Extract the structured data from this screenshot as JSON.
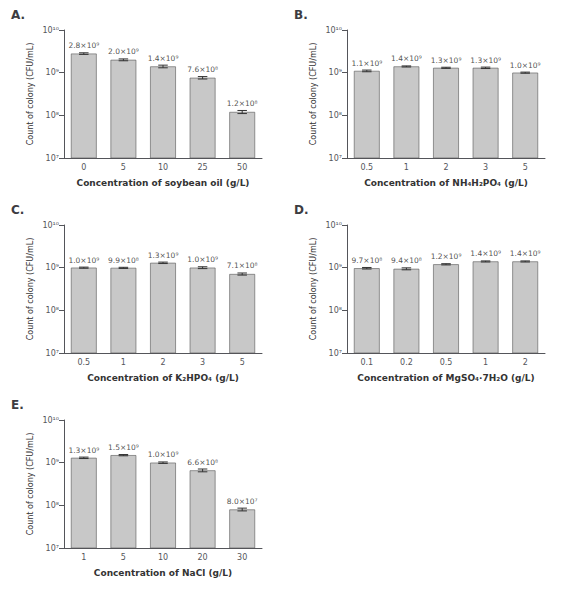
{
  "chart_data": [
    {
      "type": "bar",
      "title": "A.",
      "xlabel": "Concentration of soybean oil (g/L)",
      "ylabel": "Count of colony (CFU/mL)",
      "categories": [
        "0",
        "5",
        "10",
        "25",
        "50"
      ],
      "values": [
        2800000000.0,
        2000000000.0,
        1400000000.0,
        760000000.0,
        120000000.0
      ],
      "errors": [
        120000000.0,
        100000000.0,
        100000000.0,
        50000000.0,
        10000000.0
      ],
      "annotations": [
        "2.8×10⁹",
        "2.0×10⁹",
        "1.4×10⁹",
        "7.6×10⁸",
        "1.2×10⁸"
      ],
      "color": "#c8c8c8",
      "log": "y",
      "grid": false,
      "ylim": [
        10000000.0,
        10000000000.0
      ],
      "yticks": [
        {
          "value": 10000000.0,
          "label": "10⁷"
        },
        {
          "value": 100000000.0,
          "label": "10⁸"
        },
        {
          "value": 1000000000.0,
          "label": "10⁹"
        },
        {
          "value": 10000000000.0,
          "label": "10¹⁰"
        }
      ]
    },
    {
      "type": "bar",
      "title": "B.",
      "xlabel": "Concentration of NH₄H₂PO₄ (g/L)",
      "ylabel": "Count of colony (CFU/mL)",
      "categories": [
        "0.5",
        "1",
        "2",
        "3",
        "5"
      ],
      "values": [
        1100000000.0,
        1400000000.0,
        1300000000.0,
        1300000000.0,
        1000000000.0
      ],
      "errors": [
        50000000.0,
        40000000.0,
        40000000.0,
        50000000.0,
        30000000.0
      ],
      "annotations": [
        "1.1×10⁹",
        "1.4×10⁹",
        "1.3×10⁹",
        "1.3×10⁹",
        "1.0×10⁹"
      ],
      "color": "#c8c8c8",
      "log": "y",
      "grid": false,
      "ylim": [
        10000000.0,
        10000000000.0
      ],
      "yticks": [
        {
          "value": 10000000.0,
          "label": "10⁷"
        },
        {
          "value": 100000000.0,
          "label": "10⁸"
        },
        {
          "value": 1000000000.0,
          "label": "10⁹"
        },
        {
          "value": 10000000000.0,
          "label": "10¹⁰"
        }
      ]
    },
    {
      "type": "bar",
      "title": "C.",
      "xlabel": "Concentration of K₂HPO₄ (g/L)",
      "ylabel": "Count of colony (CFU/mL)",
      "categories": [
        "0.5",
        "1",
        "2",
        "3",
        "5"
      ],
      "values": [
        1000000000.0,
        990000000.0,
        1300000000.0,
        1000000000.0,
        710000000.0
      ],
      "errors": [
        30000000.0,
        30000000.0,
        50000000.0,
        50000000.0,
        40000000.0
      ],
      "annotations": [
        "1.0×10⁹",
        "9.9×10⁸",
        "1.3×10⁹",
        "1.0×10⁹",
        "7.1×10⁸"
      ],
      "color": "#c8c8c8",
      "log": "y",
      "grid": false,
      "ylim": [
        10000000.0,
        10000000000.0
      ],
      "yticks": [
        {
          "value": 10000000.0,
          "label": "10⁷"
        },
        {
          "value": 100000000.0,
          "label": "10⁸"
        },
        {
          "value": 1000000000.0,
          "label": "10⁹"
        },
        {
          "value": 10000000000.0,
          "label": "10¹⁰"
        }
      ]
    },
    {
      "type": "bar",
      "title": "D.",
      "xlabel": "Concentration of MgSO₄·7H₂O (g/L)",
      "ylabel": "Count of colony (CFU/mL)",
      "categories": [
        "0.1",
        "0.2",
        "0.5",
        "1",
        "2"
      ],
      "values": [
        970000000.0,
        940000000.0,
        1200000000.0,
        1400000000.0,
        1400000000.0
      ],
      "errors": [
        40000000.0,
        50000000.0,
        40000000.0,
        40000000.0,
        40000000.0
      ],
      "annotations": [
        "9.7×10⁸",
        "9.4×10⁸",
        "1.2×10⁹",
        "1.4×10⁹",
        "1.4×10⁹"
      ],
      "color": "#c8c8c8",
      "log": "y",
      "grid": false,
      "ylim": [
        10000000.0,
        10000000000.0
      ],
      "yticks": [
        {
          "value": 10000000.0,
          "label": "10⁷"
        },
        {
          "value": 100000000.0,
          "label": "10⁸"
        },
        {
          "value": 1000000000.0,
          "label": "10⁹"
        },
        {
          "value": 10000000000.0,
          "label": "10¹⁰"
        }
      ]
    },
    {
      "type": "bar",
      "title": "E.",
      "xlabel": "Concentration of NaCl (g/L)",
      "ylabel": "Count of colony (CFU/mL)",
      "categories": [
        "1",
        "5",
        "10",
        "20",
        "30"
      ],
      "values": [
        1300000000.0,
        1500000000.0,
        1000000000.0,
        660000000.0,
        80000000.0
      ],
      "errors": [
        50000000.0,
        50000000.0,
        40000000.0,
        50000000.0,
        6000000.0
      ],
      "annotations": [
        "1.3×10⁹",
        "1.5×10⁹",
        "1.0×10⁹",
        "6.6×10⁸",
        "8.0×10⁷"
      ],
      "color": "#c8c8c8",
      "log": "y",
      "grid": false,
      "ylim": [
        10000000.0,
        10000000000.0
      ],
      "yticks": [
        {
          "value": 10000000.0,
          "label": "10⁷"
        },
        {
          "value": 100000000.0,
          "label": "10⁸"
        },
        {
          "value": 1000000000.0,
          "label": "10⁹"
        },
        {
          "value": 10000000000.0,
          "label": "10¹⁰"
        }
      ]
    }
  ]
}
